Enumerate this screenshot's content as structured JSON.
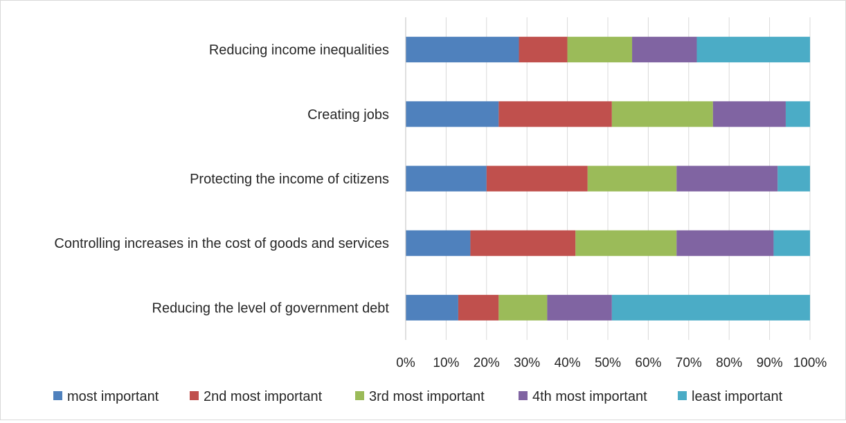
{
  "chart_data": {
    "type": "bar",
    "orientation": "horizontal",
    "stacked": "percent",
    "categories": [
      "Reducing income inequalities",
      "Creating jobs",
      "Protecting the income of citizens",
      "Controlling increases in the cost of goods and services",
      "Reducing the level of government debt"
    ],
    "series": [
      {
        "name": "most important",
        "color": "#4f81bd",
        "values": [
          28,
          23,
          20,
          16,
          13
        ]
      },
      {
        "name": "2nd most important",
        "color": "#c0504d",
        "values": [
          12,
          28,
          25,
          26,
          10
        ]
      },
      {
        "name": "3rd most important",
        "color": "#9bbb59",
        "values": [
          16,
          25,
          22,
          25,
          12
        ]
      },
      {
        "name": "4th most important",
        "color": "#8064a2",
        "values": [
          16,
          18,
          25,
          24,
          16
        ]
      },
      {
        "name": "least important",
        "color": "#4bacc6",
        "values": [
          28,
          6,
          8,
          9,
          49
        ]
      }
    ],
    "xticks": [
      "0%",
      "10%",
      "20%",
      "30%",
      "40%",
      "50%",
      "60%",
      "70%",
      "80%",
      "90%",
      "100%"
    ],
    "xlim": [
      0,
      100
    ],
    "grid": true,
    "legend_position": "bottom"
  }
}
